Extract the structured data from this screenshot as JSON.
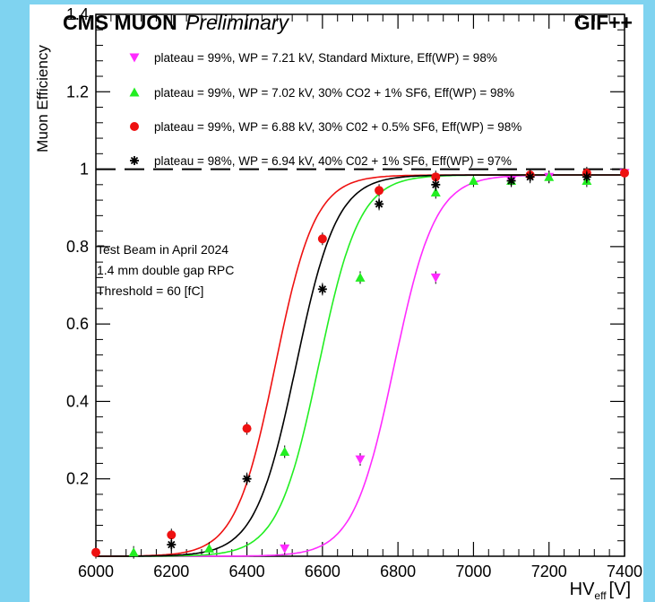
{
  "header": {
    "experiment": "CMS MUON",
    "status": "Preliminary",
    "facility": "GIF++"
  },
  "annotation": {
    "lines": [
      "Test Beam in April 2024",
      "1.4 mm double gap RPC",
      "Threshold = 60 [fC]"
    ]
  },
  "colors": {
    "background": "#7fd3f0",
    "standard": "#ff2bff",
    "co2_30_sf6_1": "#22ee22",
    "co2_30_sf6_05": "#ee1111",
    "co2_40_sf6_1": "#000000"
  },
  "chart_data": {
    "type": "scatter",
    "xlabel": "HV",
    "xlabel_sub": "eff",
    "xlabel_unit": "[V]",
    "ylabel": "Muon Efficiency",
    "xlim": [
      6000,
      7400
    ],
    "ylim": [
      0,
      1.4
    ],
    "x_ticks": [
      6000,
      6200,
      6400,
      6600,
      6800,
      7000,
      7200,
      7400
    ],
    "y_ticks": [
      0.2,
      0.4,
      0.6,
      0.8,
      1,
      1.2,
      1.4
    ],
    "y_tick_labels": [
      "0.2",
      "0.4",
      "0.6",
      "0.8",
      "1",
      "1.2",
      "1.4"
    ],
    "reference_line": {
      "y": 1.0,
      "style": "dashed"
    },
    "legend_position": "top",
    "series": [
      {
        "name": "plateau = 99%, WP = 7.21 kV, Standard Mixture, Eff(WP) = 98%",
        "marker": "triangle-down",
        "color": "#ff2bff",
        "fit": {
          "plateau": 0.985,
          "x50": 6790,
          "k": 0.0185
        },
        "points": [
          [
            6500,
            0.02
          ],
          [
            6700,
            0.25
          ],
          [
            6900,
            0.72
          ],
          [
            7100,
            0.97
          ],
          [
            7200,
            0.98
          ],
          [
            7400,
            0.99
          ]
        ]
      },
      {
        "name": "plateau = 99%, WP = 7.02 kV, 30% CO2 + 1% SF6, Eff(WP) = 98%",
        "marker": "triangle-up",
        "color": "#22ee22",
        "fit": {
          "plateau": 0.985,
          "x50": 6590,
          "k": 0.0185
        },
        "points": [
          [
            6100,
            0.01
          ],
          [
            6300,
            0.02
          ],
          [
            6500,
            0.27
          ],
          [
            6700,
            0.72
          ],
          [
            6900,
            0.94
          ],
          [
            7000,
            0.97
          ],
          [
            7100,
            0.97
          ],
          [
            7200,
            0.98
          ],
          [
            7300,
            0.97
          ]
        ]
      },
      {
        "name": "plateau = 99%, WP = 6.88 kV, 30% C02 + 0.5% SF6, Eff(WP) = 98%",
        "marker": "circle",
        "color": "#ee1111",
        "fit": {
          "plateau": 0.985,
          "x50": 6475,
          "k": 0.019
        },
        "points": [
          [
            6000,
            0.01
          ],
          [
            6200,
            0.055
          ],
          [
            6400,
            0.33
          ],
          [
            6600,
            0.82
          ],
          [
            6750,
            0.945
          ],
          [
            6900,
            0.98
          ],
          [
            7150,
            0.985
          ],
          [
            7300,
            0.99
          ],
          [
            7400,
            0.99
          ]
        ]
      },
      {
        "name": "plateau = 98%, WP = 6.94 kV, 40% C02 + 1% SF6, Eff(WP) = 97%",
        "marker": "star",
        "color": "#000000",
        "fit": {
          "plateau": 0.985,
          "x50": 6530,
          "k": 0.0185
        },
        "points": [
          [
            6200,
            0.03
          ],
          [
            6400,
            0.2
          ],
          [
            6600,
            0.69
          ],
          [
            6750,
            0.91
          ],
          [
            6900,
            0.96
          ],
          [
            7100,
            0.97
          ],
          [
            7150,
            0.98
          ],
          [
            7300,
            0.98
          ]
        ]
      }
    ]
  }
}
